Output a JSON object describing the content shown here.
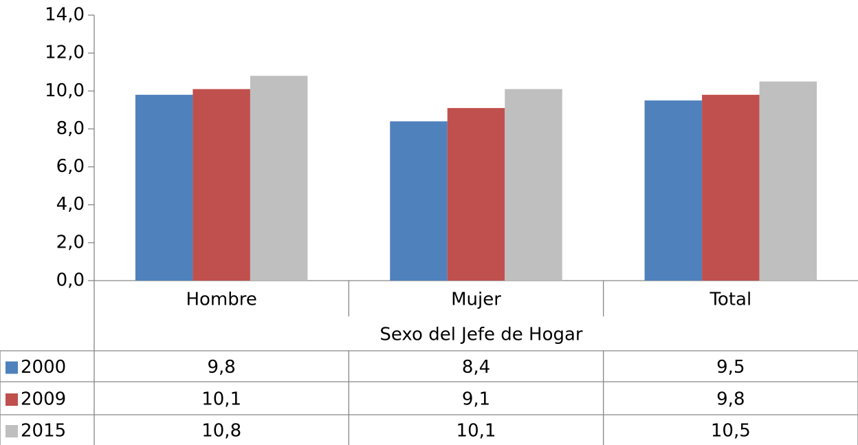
{
  "chart_data": {
    "type": "bar",
    "categories": [
      "Hombre",
      "Mujer",
      "Total"
    ],
    "x_label": "Sexo del Jefe de Hogar",
    "series": [
      {
        "name": "2000",
        "color": "#4f81bd",
        "values": [
          9.8,
          8.4,
          9.5
        ],
        "value_labels": [
          "9,8",
          "8,4",
          "9,5"
        ]
      },
      {
        "name": "2009",
        "color": "#c0504d",
        "values": [
          10.1,
          9.1,
          9.8
        ],
        "value_labels": [
          "10,1",
          "9,1",
          "9,8"
        ]
      },
      {
        "name": "2015",
        "color": "#bfbfbf",
        "values": [
          10.8,
          10.1,
          10.5
        ],
        "value_labels": [
          "10,8",
          "10,1",
          "10,5"
        ]
      }
    ],
    "ylim": [
      0,
      14
    ],
    "yticks": [
      {
        "value": 0,
        "label": "0,0"
      },
      {
        "value": 2,
        "label": "2,0"
      },
      {
        "value": 4,
        "label": "4,0"
      },
      {
        "value": 6,
        "label": "6,0"
      },
      {
        "value": 8,
        "label": "8,0"
      },
      {
        "value": 10,
        "label": "10,0"
      },
      {
        "value": 12,
        "label": "12,0"
      },
      {
        "value": 14,
        "label": "14,0"
      }
    ],
    "grid": false,
    "legend": "table"
  }
}
